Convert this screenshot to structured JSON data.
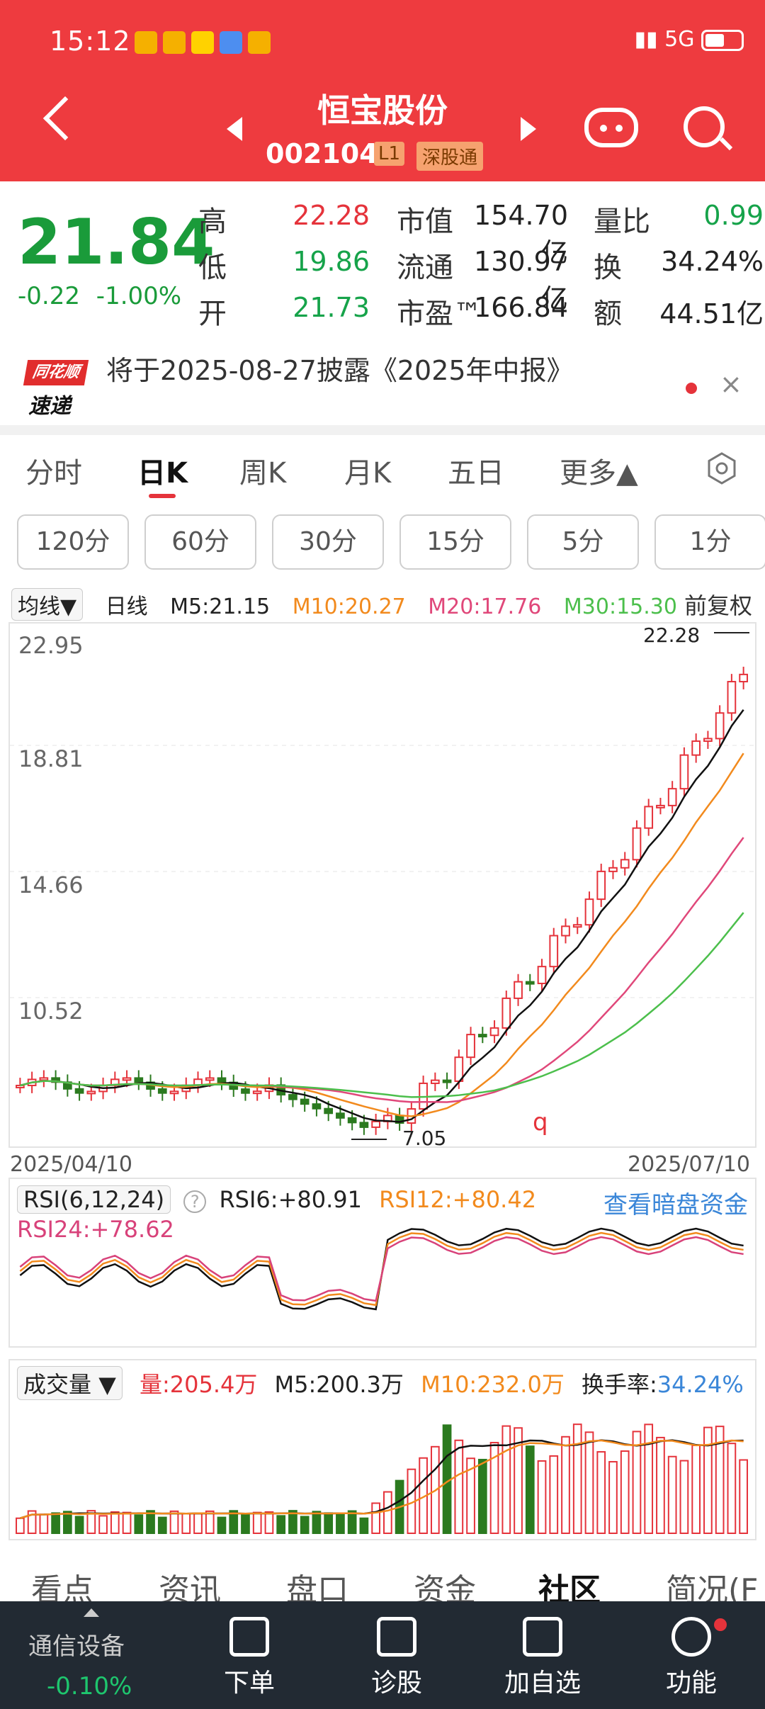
{
  "status": {
    "time": "15:12",
    "right": "5G"
  },
  "header": {
    "name": "恒宝股份",
    "code": "002104",
    "level_badge": "L1",
    "market_badge": "深股通"
  },
  "quote": {
    "price": "21.84",
    "change": "-0.22",
    "change_pct": "-1.00%",
    "rows": [
      {
        "l1": "高",
        "v1": "22.28",
        "l2": "市值",
        "v2": "154.70亿",
        "l3": "量比",
        "v3": "0.99"
      },
      {
        "l1": "低",
        "v1": "19.86",
        "l2": "流通",
        "v2": "130.97亿",
        "l3": "换",
        "v3": "34.24%"
      },
      {
        "l1": "开",
        "v1": "21.73",
        "l2": "市盈™",
        "v2": "166.84",
        "l3": "额",
        "v3": "44.51亿"
      }
    ]
  },
  "notice": {
    "logo_top": "同花顺",
    "logo_bottom": "速递",
    "text": "将于2025-08-27披露《2025年中报》",
    "close": "×"
  },
  "period_tabs": [
    "分时",
    "日K",
    "周K",
    "月K",
    "五日",
    "更多▲"
  ],
  "minute_buttons": [
    "120分",
    "60分",
    "30分",
    "15分",
    "5分",
    "1分"
  ],
  "ma": {
    "type": "均线▼",
    "period": "日线",
    "m5": "M5:21.15",
    "m10": "M10:20.27",
    "m20": "M20:17.76",
    "m30": "M30:15.30",
    "adjust": "前复权"
  },
  "kline": {
    "y_ticks": [
      "22.95",
      "18.81",
      "14.66",
      "10.52"
    ],
    "x_start": "2025/04/10",
    "x_end": "2025/07/10",
    "high_mark": "22.28",
    "low_mark": "7.05",
    "q_mark": "q"
  },
  "rsi": {
    "title": "RSI(6,12,24)",
    "rsi6": "RSI6:+80.91",
    "rsi12": "RSI12:+80.42",
    "rsi24": "RSI24:+78.62",
    "link": "查看暗盘资金"
  },
  "volume": {
    "title": "成交量",
    "vol": "量:205.4万",
    "m5": "M5:200.3万",
    "m10": "M10:232.0万",
    "turnover_label": "换手率:",
    "turnover": "34.24%"
  },
  "bottom_tabs": [
    "看点",
    "资讯",
    "盘口",
    "资金",
    "社区",
    "简况(F"
  ],
  "bottom_nav": {
    "sector": "通信设备",
    "sector_pct": "-0.10%",
    "items": [
      "下单",
      "诊股",
      "加自选",
      "功能"
    ]
  }
}
